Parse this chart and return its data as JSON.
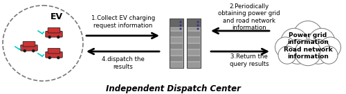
{
  "bg_color": "#ffffff",
  "title": "Independent Dispatch Center",
  "title_fontsize": 8.5,
  "title_fontstyle": "italic",
  "title_fontweight": "bold",
  "ev_label": "EV",
  "label1": "1.Collect EV charging\nrequest information",
  "label2": "2.Periodically\nobtaining power grid\nand road network\ninformation",
  "label3": "3.Return the\nquery results",
  "label4": "4.dispatch the\nresults",
  "cloud_text": "Power grid\ninformation\nRoad network\ninformation",
  "text_fontsize": 6.2,
  "cloud_text_fontsize": 6.5,
  "arrow_lw": 2.0,
  "server_main_color": "#888888",
  "server_dark_color": "#555555",
  "server_stripe_color": "#aaaaaa"
}
